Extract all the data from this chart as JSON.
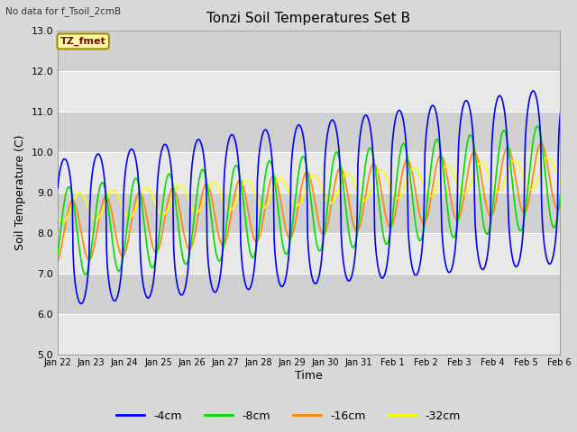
{
  "title": "Tonzi Soil Temperatures Set B",
  "subtitle": "No data for f_Tsoil_2cmB",
  "annotation": "TZ_fmet",
  "xlabel": "Time",
  "ylabel": "Soil Temperature (C)",
  "ylim": [
    5.0,
    13.0
  ],
  "yticks": [
    5.0,
    6.0,
    7.0,
    8.0,
    9.0,
    10.0,
    11.0,
    12.0,
    13.0
  ],
  "colors": {
    "-4cm": "#0000ff",
    "-8cm": "#00dd00",
    "-16cm": "#ff8800",
    "-32cm": "#ffff00"
  },
  "legend_labels": [
    "-4cm",
    "-8cm",
    "-16cm",
    "-32cm"
  ],
  "fig_bg": "#d8d8d8",
  "plot_bg_light": "#e8e8e8",
  "plot_bg_dark": "#d0d0d0",
  "grid_color": "#ffffff"
}
